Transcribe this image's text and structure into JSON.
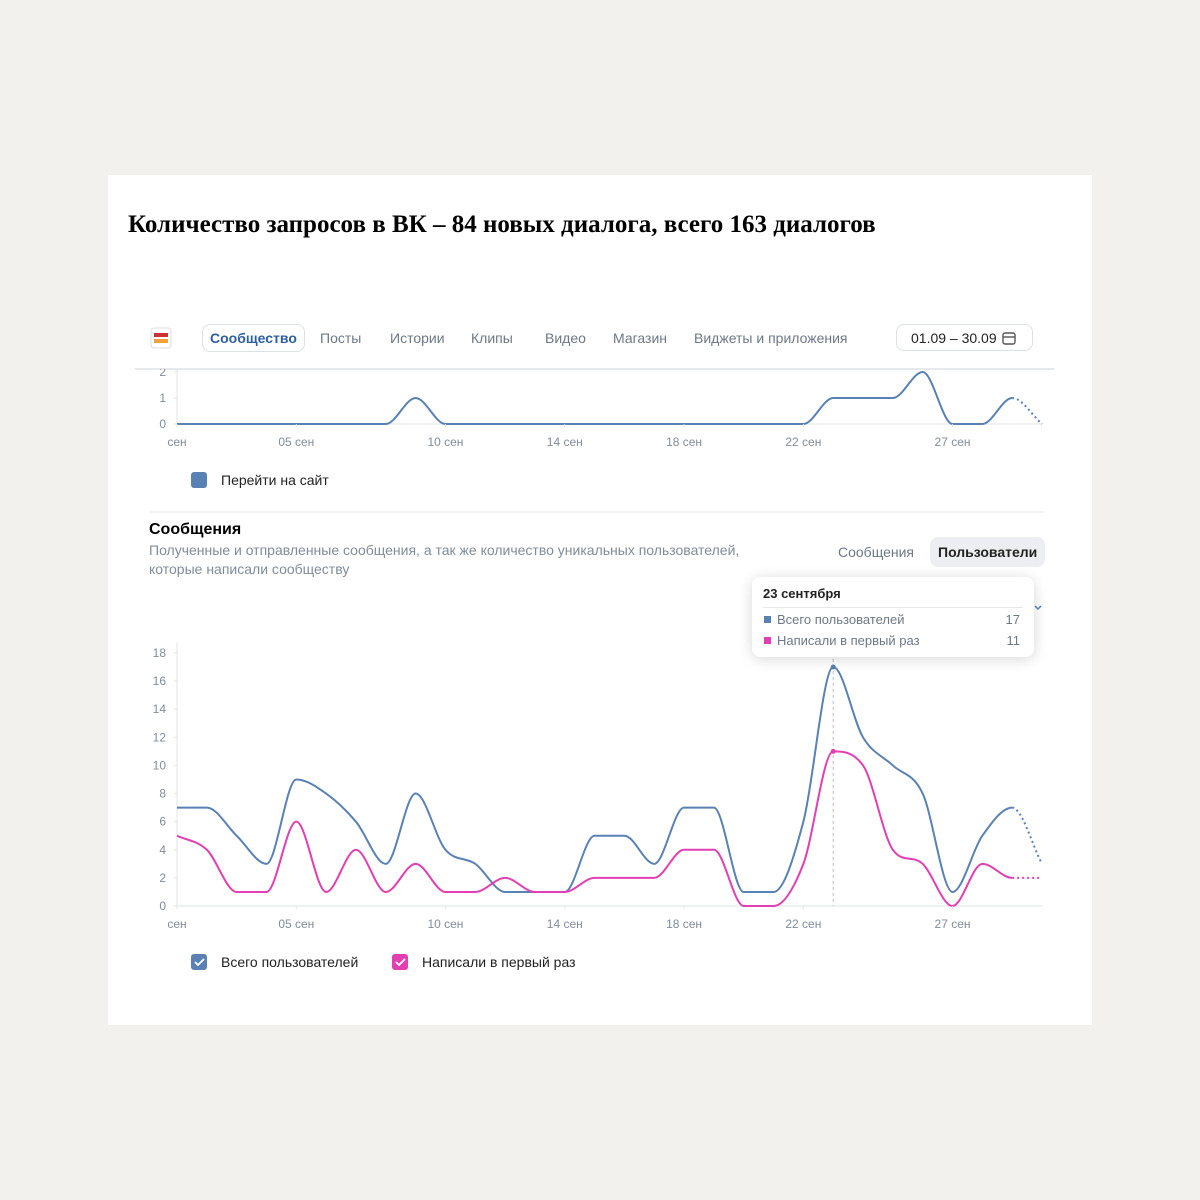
{
  "heading": "Количество запросов в ВК – 84 новых диалога, всего 163 диалогов",
  "nav": {
    "tabs": [
      "Сообщество",
      "Посты",
      "Истории",
      "Клипы",
      "Видео",
      "Магазин",
      "Виджеты и приложения"
    ],
    "date_range": "01.09 – 30.09"
  },
  "messages_section": {
    "title": "Сообщения",
    "description": "Полученные и отправленные сообщения, а так же количество уникальных пользователей, которые написали сообществу",
    "toggles": [
      "Сообщения",
      "Пользователи"
    ]
  },
  "chart_data": [
    {
      "type": "line",
      "x": [
        1,
        2,
        3,
        4,
        5,
        6,
        7,
        8,
        9,
        10,
        11,
        12,
        13,
        14,
        15,
        16,
        17,
        18,
        19,
        20,
        21,
        22,
        23,
        24,
        25,
        26,
        27,
        28,
        29,
        30
      ],
      "series": [
        {
          "name": "Перейти на сайт",
          "color": "#5a81b4",
          "values": [
            0,
            0,
            0,
            0,
            0,
            0,
            0,
            0,
            1,
            0,
            0,
            0,
            0,
            0,
            0,
            0,
            0,
            0,
            0,
            0,
            0,
            0,
            1,
            1,
            1,
            2,
            0,
            0,
            1,
            0
          ]
        }
      ],
      "xlim": [
        1,
        30
      ],
      "xticks": [
        {
          "value": 1,
          "label": "сен"
        },
        {
          "value": 5,
          "label": "05 сен"
        },
        {
          "value": 10,
          "label": "10 сен"
        },
        {
          "value": 14,
          "label": "14 сен"
        },
        {
          "value": 18,
          "label": "18 сен"
        },
        {
          "value": 22,
          "label": "22 сен"
        },
        {
          "value": 27,
          "label": "27 сен"
        }
      ],
      "ylim": [
        0,
        2
      ],
      "yticks": [
        0,
        1,
        2
      ]
    },
    {
      "type": "line",
      "x": [
        1,
        2,
        3,
        4,
        5,
        6,
        7,
        8,
        9,
        10,
        11,
        12,
        13,
        14,
        15,
        16,
        17,
        18,
        19,
        20,
        21,
        22,
        23,
        24,
        25,
        26,
        27,
        28,
        29,
        30
      ],
      "series": [
        {
          "name": "Всего пользователей",
          "color": "#5a81b4",
          "values": [
            7,
            7,
            5,
            3,
            9,
            8,
            6,
            3,
            8,
            4,
            3,
            1,
            1,
            1,
            5,
            5,
            3,
            7,
            7,
            1,
            1,
            6,
            17,
            12,
            10,
            8,
            1,
            5,
            7,
            3
          ]
        },
        {
          "name": "Написали в первый раз",
          "color": "#e23fb2",
          "values": [
            5,
            4,
            1,
            1,
            6,
            1,
            4,
            1,
            3,
            1,
            1,
            2,
            1,
            1,
            2,
            2,
            2,
            4,
            4,
            0,
            0,
            3,
            11,
            10,
            4,
            3,
            0,
            3,
            2,
            2
          ]
        }
      ],
      "xlim": [
        1,
        30
      ],
      "xticks": [
        {
          "value": 1,
          "label": "сен"
        },
        {
          "value": 5,
          "label": "05 сен"
        },
        {
          "value": 10,
          "label": "10 сен"
        },
        {
          "value": 14,
          "label": "14 сен"
        },
        {
          "value": 18,
          "label": "18 сен"
        },
        {
          "value": 22,
          "label": "22 сен"
        },
        {
          "value": 27,
          "label": "27 сен"
        }
      ],
      "ylim": [
        0,
        18
      ],
      "yticks": [
        0,
        2,
        4,
        6,
        8,
        10,
        12,
        14,
        16,
        18
      ],
      "tooltip_title": "23 сентября"
    }
  ]
}
